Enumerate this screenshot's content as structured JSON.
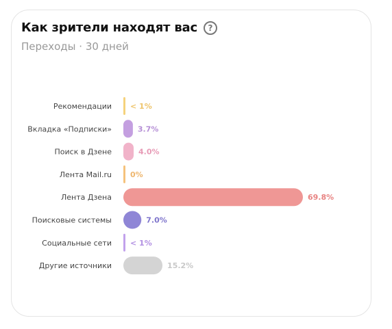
{
  "card": {
    "title": "Как зрители находят вас",
    "help_icon": "question-circle-icon",
    "subtitle": "Переходы · 30 дней"
  },
  "chart_data": {
    "type": "bar",
    "orientation": "horizontal",
    "categories": [
      "Рекомендации",
      "Вкладка «Подписки»",
      "Поиск в Дзене",
      "Лента Mail.ru",
      "Лента Дзена",
      "Поисковые системы",
      "Социальные сети",
      "Другие источники"
    ],
    "values": [
      0.5,
      3.7,
      4.0,
      0,
      69.8,
      7.0,
      0.5,
      15.2
    ],
    "value_labels": [
      "< 1%",
      "3.7%",
      "4.0%",
      "0%",
      "69.8%",
      "7.0%",
      "< 1%",
      "15.2%"
    ],
    "colors": [
      "#f5d27c",
      "#c49fe0",
      "#f1b3c9",
      "#f5c27c",
      "#ef9795",
      "#8f86d6",
      "#c2a2ec",
      "#d4d4d4"
    ],
    "label_colors": [
      "#eec46b",
      "#b690d6",
      "#e79bb6",
      "#eeb66e",
      "#e88382",
      "#7f75cc",
      "#b290e2",
      "#c8c8c8"
    ],
    "xlim": [
      0,
      69.8
    ],
    "unit": "%",
    "grid": false,
    "legend": "none"
  }
}
